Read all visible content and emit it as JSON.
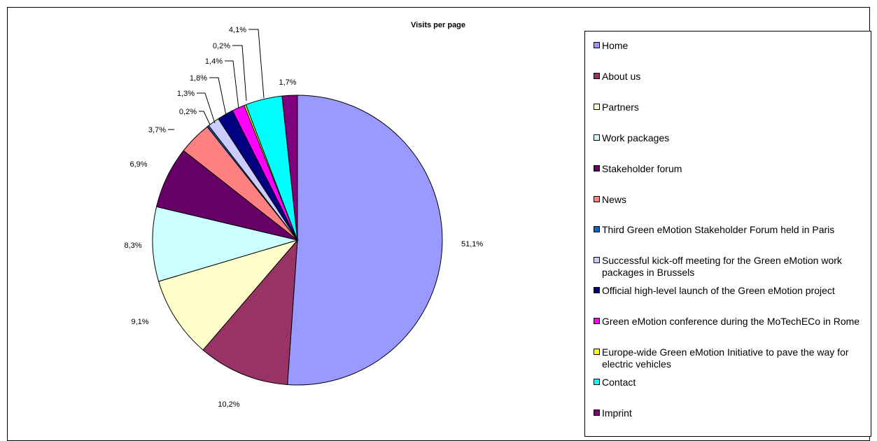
{
  "chart_data": {
    "type": "pie",
    "title": "Visits per page",
    "start_angle_deg": 0,
    "direction": "clockwise",
    "legend_position": "right",
    "slices": [
      {
        "label": "Home",
        "value": 51.1,
        "display": "51,1%",
        "color": "#9999FF"
      },
      {
        "label": "About us",
        "value": 10.2,
        "display": "10,2%",
        "color": "#993366"
      },
      {
        "label": "Partners",
        "value": 9.1,
        "display": "9,1%",
        "color": "#FFFFCC"
      },
      {
        "label": "Work packages",
        "value": 8.3,
        "display": "8,3%",
        "color": "#CCFFFF"
      },
      {
        "label": "Stakeholder forum",
        "value": 6.9,
        "display": "6,9%",
        "color": "#660066"
      },
      {
        "label": "News",
        "value": 3.7,
        "display": "3,7%",
        "color": "#FF8080"
      },
      {
        "label": "Third Green eMotion Stakeholder Forum held in Paris",
        "value": 0.2,
        "display": "0,2%",
        "color": "#0066CC"
      },
      {
        "label": "Successful kick-off meeting for the Green eMotion work packages in Brussels",
        "value": 1.3,
        "display": "1,3%",
        "color": "#CCCCFF"
      },
      {
        "label": "Official high-level launch of the Green eMotion project",
        "value": 1.8,
        "display": "1,8%",
        "color": "#000080"
      },
      {
        "label": "Green eMotion conference during the MoTechECo in Rome",
        "value": 1.4,
        "display": "1,4%",
        "color": "#FF00FF"
      },
      {
        "label": "Europe-wide Green eMotion Initiative to pave the way for electric vehicles",
        "value": 0.2,
        "display": "0,2%",
        "color": "#FFFF00"
      },
      {
        "label": "Contact",
        "value": 4.1,
        "display": "4,1%",
        "color": "#00FFFF"
      },
      {
        "label": "Imprint",
        "value": 1.7,
        "display": "1,7%",
        "color": "#800080"
      }
    ]
  }
}
